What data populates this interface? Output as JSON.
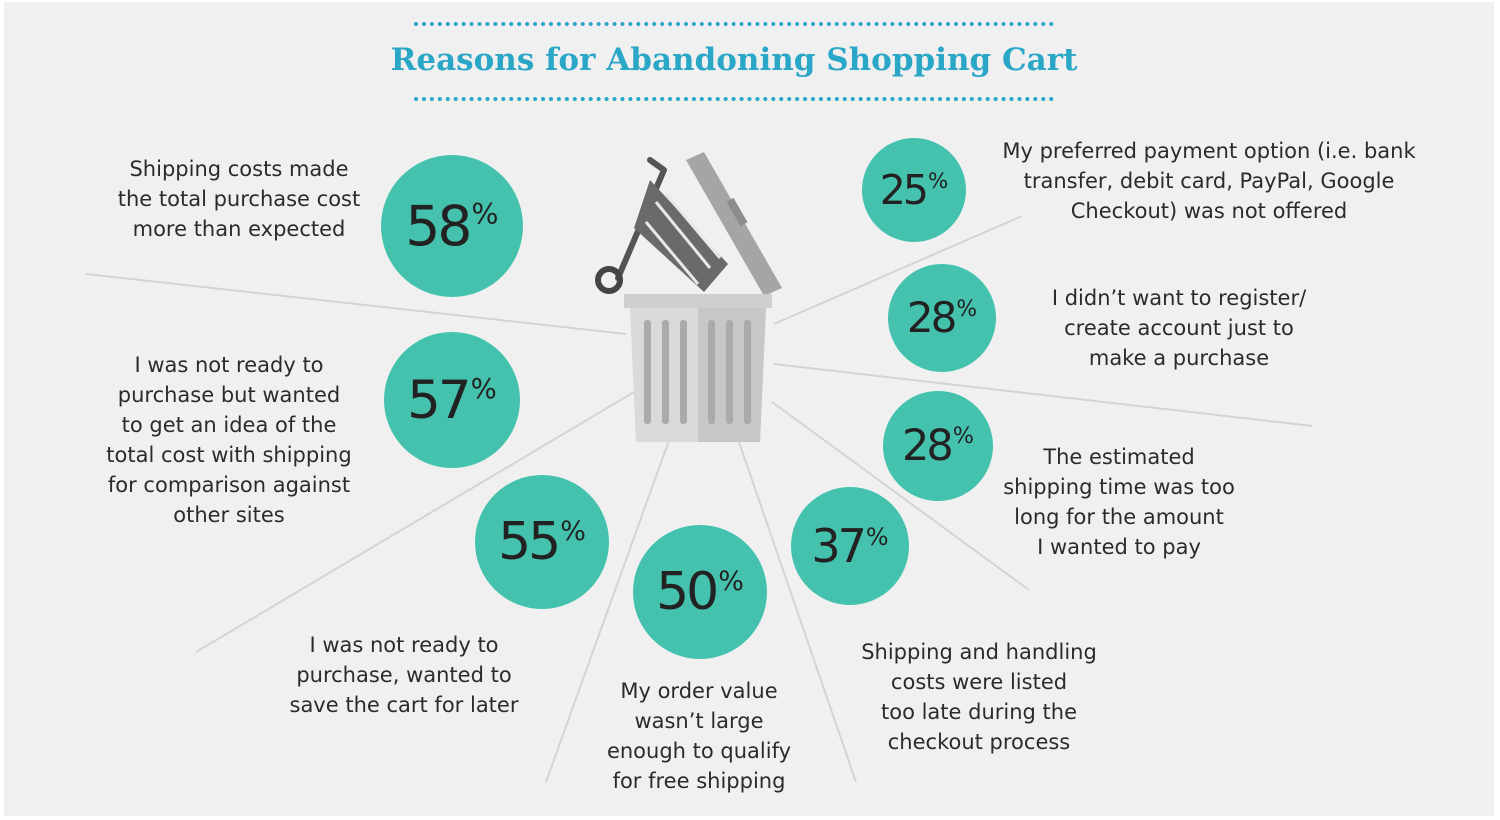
{
  "title": "Reasons for Abandoning Shopping Cart",
  "accent_color": "#2aa6c7",
  "bubble_color": "#45c2ae",
  "icon": "trash-can-with-shopping-cart-icon",
  "chart_data": {
    "type": "bubble-infographic",
    "unit": "%",
    "items": [
      {
        "value": 58,
        "label": "Shipping costs made\nthe total purchase cost\nmore than expected"
      },
      {
        "value": 57,
        "label": "I was not ready to\npurchase but wanted\nto get an idea of the\ntotal cost with shipping\nfor comparison against\nother sites"
      },
      {
        "value": 55,
        "label": "I was not ready to\npurchase, wanted to\nsave the cart for later"
      },
      {
        "value": 50,
        "label": "My order value\nwasn’t large\nenough to qualify\nfor free shipping"
      },
      {
        "value": 37,
        "label": "Shipping and handling\ncosts were listed\ntoo late during the\ncheckout process"
      },
      {
        "value": 28,
        "label": "The estimated\nshipping time was too\nlong for the amount\nI wanted to pay"
      },
      {
        "value": 28,
        "label": "I didn’t want to register/\ncreate account just to\nmake a purchase"
      },
      {
        "value": 25,
        "label": "My preferred payment option (i.e. bank\ntransfer, debit card, PayPal, Google\nCheckout) was not offered"
      }
    ]
  }
}
